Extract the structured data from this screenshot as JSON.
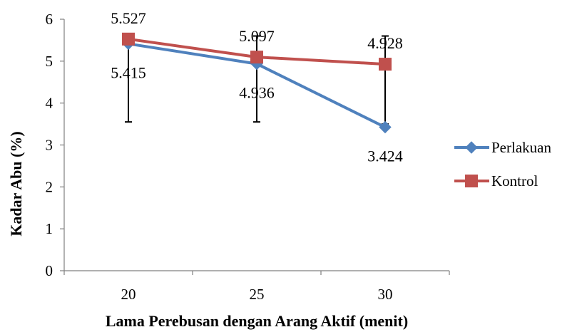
{
  "chart_data": {
    "type": "line",
    "categories": [
      "20",
      "25",
      "30"
    ],
    "xlabel": "Lama Perebusan dengan Arang Aktif (menit)",
    "ylabel": "Kadar Abu (%)",
    "ylim": [
      0,
      6
    ],
    "yticks": [
      "0",
      "1",
      "2",
      "3",
      "4",
      "5",
      "6"
    ],
    "grid": false,
    "legend_position": "right",
    "series": [
      {
        "name": "Perlakuan",
        "values": [
          5.415,
          4.936,
          3.424
        ],
        "labels": [
          "5.415",
          "4.936",
          "3.424"
        ],
        "color": "#4F81BD",
        "marker": "diamond"
      },
      {
        "name": "Kontrol",
        "values": [
          5.527,
          5.097,
          4.928
        ],
        "labels": [
          "5.527",
          "5.097",
          "4.928"
        ],
        "color": "#C0504D",
        "marker": "square"
      }
    ],
    "error_bars": {
      "low": [
        3.55,
        3.55,
        3.5
      ],
      "high": [
        5.5,
        5.6,
        5.6
      ]
    }
  }
}
